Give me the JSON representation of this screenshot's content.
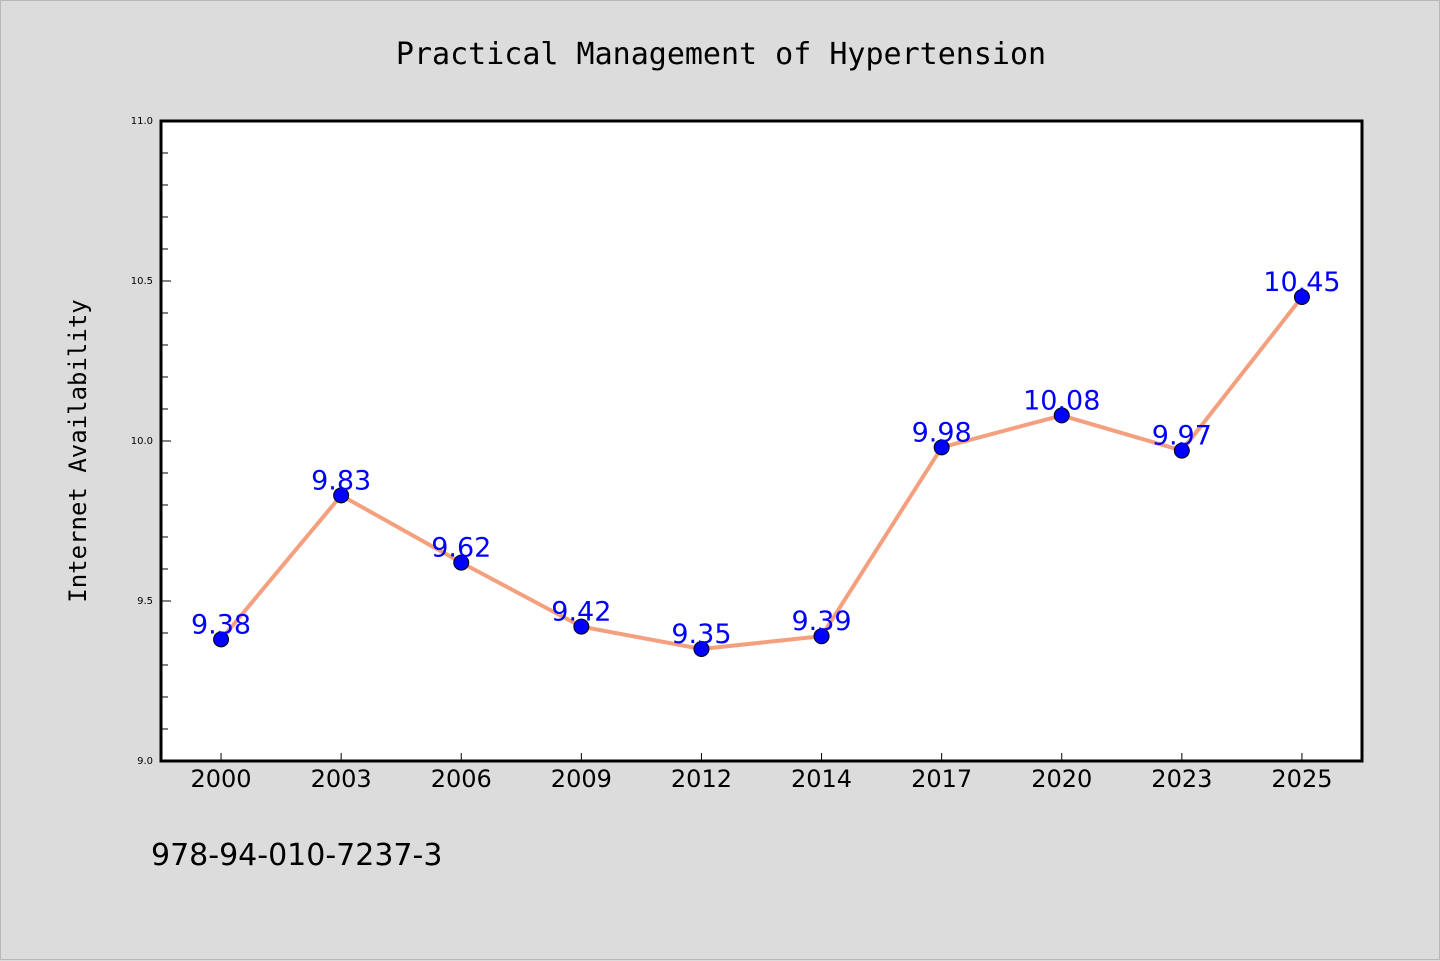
{
  "chart_data": {
    "type": "line",
    "title": "Practical Management of Hypertension",
    "xlabel": "",
    "ylabel": "Internet Availability",
    "categories": [
      "2000",
      "2003",
      "2006",
      "2009",
      "2012",
      "2014",
      "2017",
      "2020",
      "2023",
      "2025"
    ],
    "series": [
      {
        "values": [
          9.38,
          9.83,
          9.62,
          9.42,
          9.35,
          9.39,
          9.98,
          10.08,
          9.97,
          10.45
        ]
      }
    ],
    "data_labels": [
      "9.38",
      "9.83",
      "9.62",
      "9.42",
      "9.35",
      "9.39",
      "9.98",
      "10.08",
      "9.97",
      "10.45"
    ],
    "ylim": [
      9.0,
      11.0
    ],
    "yticks": [
      "9.0",
      "9.5",
      "10.0",
      "10.5",
      "11.0"
    ],
    "grid": false,
    "colors": {
      "line": "#f4a07f",
      "marker": "#0000ff",
      "label": "#0000ff"
    }
  },
  "footer_text": "978-94-010-7237-3"
}
